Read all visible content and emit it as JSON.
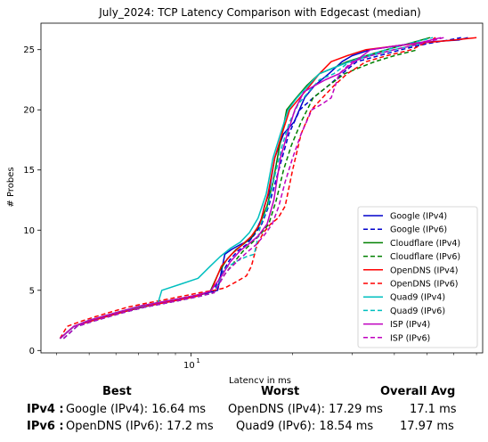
{
  "chart_data": {
    "type": "line",
    "title": "July_2024: TCP Latency Comparison with Edgecast (median)",
    "xlabel": "Latency in ms",
    "ylabel": "# Probes",
    "xscale": "log",
    "xlim": [
      3.6,
      73
    ],
    "ylim": [
      -0.2,
      27.2
    ],
    "yticks": [
      0,
      5,
      10,
      15,
      20,
      25
    ],
    "xticks": [
      {
        "value": 10,
        "label": "10",
        "exp": "1"
      }
    ],
    "legend_placement": "lower-right",
    "series": [
      {
        "name": "Google (IPv4)",
        "color": "#0000cc",
        "dash": "solid",
        "x": [
          4.1,
          4.5,
          5.0,
          5.6,
          6.3,
          7.2,
          8.1,
          9.2,
          10.3,
          11.2,
          12.0,
          12.6,
          13.2,
          14.0,
          15.0,
          15.6,
          16.2,
          16.5,
          17.0,
          17.7,
          18.8,
          20.2,
          21.7,
          23.2,
          25.6,
          28.0,
          30.0,
          34.0,
          40.0,
          48.0,
          62.0,
          66.0
        ],
        "y": [
          1,
          2,
          2.4,
          2.8,
          3.2,
          3.6,
          3.9,
          4.2,
          4.5,
          4.8,
          5,
          8,
          8.4,
          8.8,
          9.2,
          10,
          11,
          12,
          13,
          16,
          18,
          19,
          21,
          22,
          23,
          24,
          24.5,
          25,
          25.3,
          25.6,
          25.8,
          26
        ]
      },
      {
        "name": "Google (IPv6)",
        "color": "#0000cc",
        "dash": "dashed",
        "x": [
          4.2,
          4.6,
          5.1,
          5.7,
          6.4,
          7.3,
          8.3,
          9.4,
          10.6,
          11.6,
          12.4,
          13.0,
          13.8,
          14.6,
          15.4,
          16.2,
          17.0,
          17.6,
          18.4,
          19.5,
          21.0,
          23.0,
          25.5,
          28.0,
          31.0,
          36.0,
          42.0,
          50.0,
          58.0,
          63.0
        ],
        "y": [
          1,
          2,
          2.4,
          2.8,
          3.2,
          3.6,
          3.9,
          4.2,
          4.5,
          4.8,
          6.5,
          7.5,
          8.3,
          8.8,
          9.6,
          10.5,
          12,
          13.5,
          15.5,
          18,
          20,
          21,
          22,
          23,
          24,
          24.5,
          25,
          25.5,
          25.8,
          26
        ]
      },
      {
        "name": "Cloudflare (IPv4)",
        "color": "#008000",
        "dash": "solid",
        "x": [
          4.1,
          4.5,
          5.0,
          5.6,
          6.3,
          7.1,
          8.1,
          9.2,
          10.4,
          11.4,
          12.1,
          12.8,
          13.6,
          14.4,
          15.2,
          16.0,
          16.8,
          17.5,
          18.3,
          19.2,
          20.5,
          22.0,
          24.0,
          26.5,
          29.0,
          33.0,
          38.0,
          44.0,
          51.0
        ],
        "y": [
          1,
          2,
          2.5,
          2.9,
          3.3,
          3.7,
          4.0,
          4.3,
          4.6,
          4.9,
          6.5,
          7.6,
          8.4,
          8.9,
          9.5,
          10.5,
          12,
          14,
          17,
          20,
          21,
          22,
          23,
          23.5,
          24,
          24.5,
          25,
          25.5,
          26
        ]
      },
      {
        "name": "Cloudflare (IPv6)",
        "color": "#008000",
        "dash": "dashed",
        "x": [
          4.2,
          4.6,
          5.1,
          5.7,
          6.4,
          7.3,
          8.3,
          9.4,
          10.6,
          11.7,
          12.5,
          13.3,
          14.2,
          15.1,
          16.0,
          17.0,
          17.9,
          18.8,
          19.8,
          21.2,
          23.0,
          25.5,
          28.5,
          31.5,
          35.0,
          40.0,
          47.0
        ],
        "y": [
          1,
          2,
          2.4,
          2.8,
          3.2,
          3.6,
          3.9,
          4.2,
          4.5,
          4.8,
          6.2,
          7.2,
          8.2,
          8.9,
          9.6,
          10.5,
          12.5,
          15,
          17,
          19,
          21,
          22,
          23,
          23.5,
          24,
          24.5,
          25
        ]
      },
      {
        "name": "OpenDNS (IPv4)",
        "color": "#ff0000",
        "dash": "solid",
        "x": [
          4.1,
          4.5,
          5.0,
          5.6,
          6.3,
          7.1,
          8.1,
          9.2,
          10.4,
          11.5,
          12.3,
          13.2,
          14.2,
          15.1,
          16.0,
          16.9,
          17.7,
          18.6,
          19.6,
          21.0,
          22.5,
          24.0,
          26.0,
          29.0,
          33.0,
          40.0,
          50.0,
          60.0,
          70.0
        ],
        "y": [
          1,
          2,
          2.4,
          2.8,
          3.2,
          3.6,
          3.9,
          4.2,
          4.5,
          5,
          7,
          8,
          8.8,
          9.5,
          10.5,
          13,
          16,
          18,
          20,
          21,
          22,
          23,
          24,
          24.5,
          25,
          25.3,
          25.6,
          25.8,
          26
        ]
      },
      {
        "name": "OpenDNS (IPv6)",
        "color": "#ff0000",
        "dash": "dashed",
        "x": [
          4.1,
          4.3,
          4.7,
          5.2,
          5.8,
          6.5,
          7.3,
          8.3,
          9.4,
          10.6,
          11.7,
          12.6,
          13.6,
          14.6,
          15.1,
          15.7,
          16.4,
          17.2,
          18.1,
          19.0,
          20.0,
          21.2,
          22.7,
          24.5,
          26.5,
          29.0,
          33.0,
          38.0,
          45.0,
          53.0
        ],
        "y": [
          1,
          2,
          2.4,
          2.8,
          3.2,
          3.6,
          3.9,
          4.2,
          4.5,
          4.8,
          5,
          5.2,
          5.7,
          6.2,
          7,
          8.8,
          9.8,
          10.5,
          11,
          12,
          15,
          18,
          20,
          21,
          22,
          23,
          24,
          24.5,
          25,
          26
        ]
      },
      {
        "name": "Quad9 (IPv4)",
        "color": "#00bfbf",
        "dash": "solid",
        "x": [
          4.1,
          4.5,
          5.0,
          5.6,
          6.3,
          7.2,
          8.0,
          8.2,
          9.3,
          10.5,
          11.4,
          12.2,
          13.1,
          14.0,
          14.9,
          15.8,
          16.7,
          17.5,
          18.4,
          19.4,
          20.6,
          22.2,
          24.0,
          26.5,
          29.5,
          34.0,
          40.0,
          48.0
        ],
        "y": [
          1,
          2,
          2.5,
          2.9,
          3.3,
          3.7,
          4,
          5,
          5.5,
          6,
          7,
          7.8,
          8.5,
          9.0,
          9.8,
          11,
          13,
          16,
          18,
          20,
          21,
          22,
          23,
          23.5,
          24,
          24.5,
          25,
          25.5
        ]
      },
      {
        "name": "Quad9 (IPv6)",
        "color": "#00bfbf",
        "dash": "dashed",
        "x": [
          4.2,
          4.6,
          5.1,
          5.7,
          6.4,
          7.3,
          8.3,
          9.4,
          10.6,
          11.7,
          12.6,
          13.6,
          14.6,
          15.4,
          16.1,
          16.9,
          17.7,
          18.6,
          19.6,
          20.8,
          22.3,
          24.0,
          26.5,
          29.5,
          33.0,
          38.0,
          44.0,
          52.0
        ],
        "y": [
          1,
          2,
          2.4,
          2.8,
          3.2,
          3.6,
          3.9,
          4.2,
          4.5,
          4.8,
          6.8,
          7.4,
          7.8,
          8,
          10.5,
          12,
          14.5,
          17,
          19,
          20.5,
          21.5,
          22.5,
          23,
          24,
          24.5,
          25,
          25.5,
          26
        ]
      },
      {
        "name": "ISP (IPv4)",
        "color": "#bf00bf",
        "dash": "solid",
        "x": [
          4.1,
          4.5,
          5.0,
          5.6,
          6.3,
          7.1,
          8.1,
          9.2,
          10.4,
          11.4,
          12.2,
          13.1,
          14.0,
          14.9,
          15.8,
          16.8,
          17.6,
          18.4,
          19.3,
          20.3,
          21.6,
          23.2,
          25.0,
          27.5,
          30.5,
          34.0,
          40.0,
          48.0,
          55.0
        ],
        "y": [
          1,
          2,
          2.5,
          2.9,
          3.3,
          3.7,
          4.0,
          4.3,
          4.6,
          4.9,
          6,
          7.4,
          8.3,
          8.9,
          9.5,
          10.5,
          12.5,
          16,
          18,
          20,
          21.5,
          22,
          22.5,
          23,
          24,
          25,
          25.3,
          25.6,
          26
        ]
      },
      {
        "name": "ISP (IPv6)",
        "color": "#bf00bf",
        "dash": "dashed",
        "x": [
          4.2,
          4.6,
          5.1,
          5.7,
          6.4,
          7.3,
          8.3,
          9.4,
          10.6,
          11.7,
          12.7,
          13.7,
          14.7,
          15.6,
          16.5,
          17.4,
          18.2,
          19.0,
          20.0,
          21.2,
          22.8,
          24.5,
          26.0,
          27.5,
          30.0,
          34.0,
          40.0,
          48.0,
          56.0
        ],
        "y": [
          1,
          2,
          2.4,
          2.8,
          3.2,
          3.6,
          3.9,
          4.2,
          4.5,
          4.8,
          6.5,
          7.4,
          8.2,
          8.8,
          9.6,
          10.5,
          12,
          14,
          16,
          18,
          20,
          20.5,
          21,
          23,
          24,
          24.5,
          25,
          25.5,
          26
        ]
      }
    ]
  },
  "stats": {
    "headers": {
      "best": "Best",
      "worst": "Worst",
      "avg": "Overall Avg"
    },
    "rows": [
      {
        "label": "IPv4 :",
        "best": "Google (IPv4): 16.64 ms",
        "worst": "OpenDNS (IPv4): 17.29 ms",
        "avg": "17.1 ms"
      },
      {
        "label": "IPv6 :",
        "best": "OpenDNS (IPv6): 17.2 ms",
        "worst": "Quad9 (IPv6): 18.54 ms",
        "avg": "17.97 ms"
      }
    ]
  }
}
